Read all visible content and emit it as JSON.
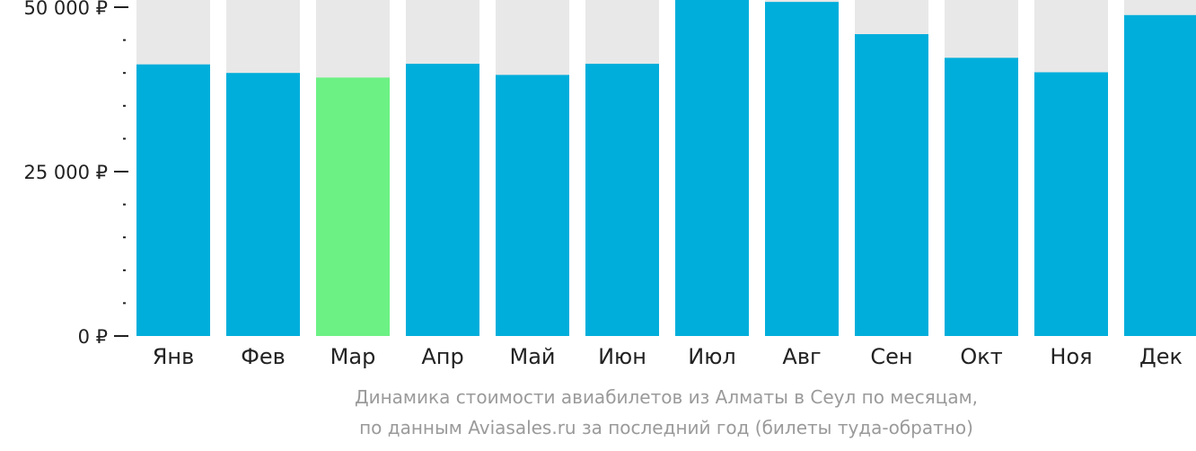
{
  "chart_data": {
    "type": "bar",
    "categories": [
      "Янв",
      "Фев",
      "Мар",
      "Апр",
      "Май",
      "Июн",
      "Июл",
      "Авг",
      "Сен",
      "Окт",
      "Ноя",
      "Дек"
    ],
    "values": [
      41300,
      40000,
      39300,
      41400,
      39700,
      41400,
      51500,
      50800,
      45900,
      42300,
      40100,
      48800
    ],
    "highlight_index": 2,
    "ylim": [
      0,
      50000
    ],
    "y_ticks": [
      {
        "value": 0,
        "label": "0 ₽"
      },
      {
        "value": 25000,
        "label": "25 000 ₽"
      },
      {
        "value": 50000,
        "label": "50 000 ₽"
      }
    ],
    "y_minor_step": 5000,
    "colors": {
      "bar": "#00aedb",
      "highlight": "#6cf184",
      "background_bar": "#e8e8e8",
      "axis": "#222222"
    },
    "grid": false,
    "legend": "none"
  },
  "caption": {
    "line1": "Динамика стоимости авиабилетов из Алматы в Сеул по месяцам,",
    "line2": "по данным Aviasales.ru за последний год (билеты туда-обратно)"
  }
}
